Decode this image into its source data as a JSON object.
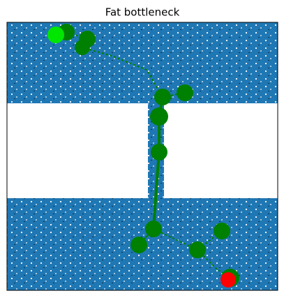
{
  "title": "Fat bottleneck"
}
